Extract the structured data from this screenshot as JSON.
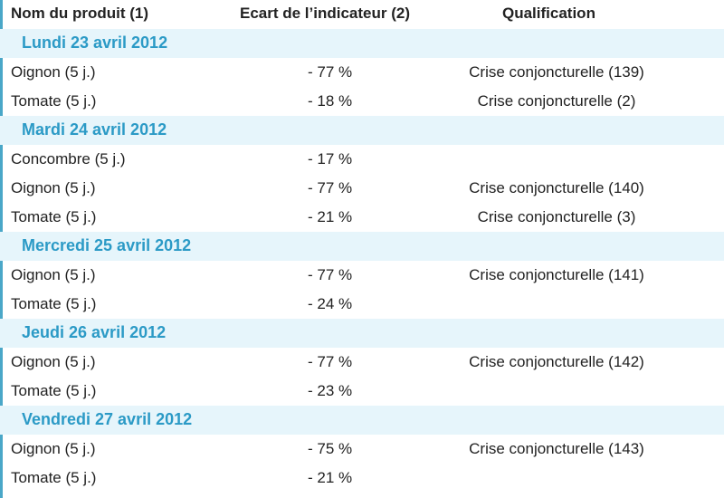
{
  "header": {
    "col1": "Nom du produit (1)",
    "col2": "Ecart de l’indicateur (2)",
    "col3": "Qualification"
  },
  "groups": [
    {
      "date": "Lundi 23 avril 2012",
      "rows": [
        {
          "produit": "Oignon (5 j.)",
          "ecart": "- 77 %",
          "qualification": "Crise conjoncturelle (139)"
        },
        {
          "produit": "Tomate (5 j.)",
          "ecart": "- 18 %",
          "qualification": "Crise conjoncturelle (2)"
        }
      ]
    },
    {
      "date": "Mardi 24 avril 2012",
      "rows": [
        {
          "produit": "Concombre (5 j.)",
          "ecart": "- 17 %",
          "qualification": ""
        },
        {
          "produit": "Oignon (5 j.)",
          "ecart": "- 77 %",
          "qualification": "Crise conjoncturelle (140)"
        },
        {
          "produit": "Tomate (5 j.)",
          "ecart": "- 21 %",
          "qualification": "Crise conjoncturelle (3)"
        }
      ]
    },
    {
      "date": "Mercredi 25 avril 2012",
      "rows": [
        {
          "produit": "Oignon (5 j.)",
          "ecart": "- 77 %",
          "qualification": "Crise conjoncturelle (141)"
        },
        {
          "produit": "Tomate (5 j.)",
          "ecart": "- 24 %",
          "qualification": ""
        }
      ]
    },
    {
      "date": "Jeudi 26 avril 2012",
      "rows": [
        {
          "produit": "Oignon (5 j.)",
          "ecart": "- 77 %",
          "qualification": "Crise conjoncturelle (142)"
        },
        {
          "produit": "Tomate (5 j.)",
          "ecart": "- 23 %",
          "qualification": ""
        }
      ]
    },
    {
      "date": "Vendredi 27 avril 2012",
      "rows": [
        {
          "produit": "Oignon (5 j.)",
          "ecart": "- 75 %",
          "qualification": "Crise conjoncturelle (143)"
        },
        {
          "produit": "Tomate (5 j.)",
          "ecart": "- 21 %",
          "qualification": ""
        }
      ]
    }
  ],
  "colors": {
    "accent": "#2b9ac6",
    "date_band": "#e6f5fb",
    "text": "#222222"
  }
}
